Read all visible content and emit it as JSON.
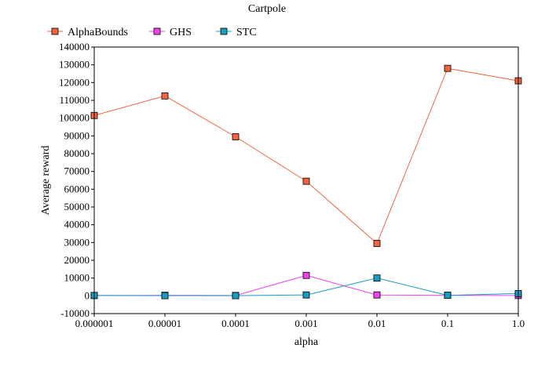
{
  "chart_data": {
    "type": "line",
    "title": "Cartpole",
    "xlabel": "alpha",
    "ylabel": "Average reward",
    "categories": [
      "0.000001",
      "0.00001",
      "0.0001",
      "0.001",
      "0.01",
      "0.1",
      "1.0"
    ],
    "ylim": [
      -10000,
      140000
    ],
    "yticks": [
      -10000,
      0,
      10000,
      20000,
      30000,
      40000,
      50000,
      60000,
      70000,
      80000,
      90000,
      100000,
      110000,
      120000,
      130000,
      140000
    ],
    "grid": false,
    "legend_position": "top-left",
    "series": [
      {
        "name": "AlphaBounds",
        "color": "#f26440",
        "values": [
          101500,
          112500,
          89500,
          64500,
          29500,
          128000,
          121000
        ]
      },
      {
        "name": "GHS",
        "color": "#ee44ee",
        "values": [
          200,
          300,
          200,
          11500,
          500,
          300,
          200
        ]
      },
      {
        "name": "STC",
        "color": "#1a9bc2",
        "values": [
          200,
          100,
          100,
          500,
          10000,
          300,
          1300
        ]
      }
    ]
  }
}
